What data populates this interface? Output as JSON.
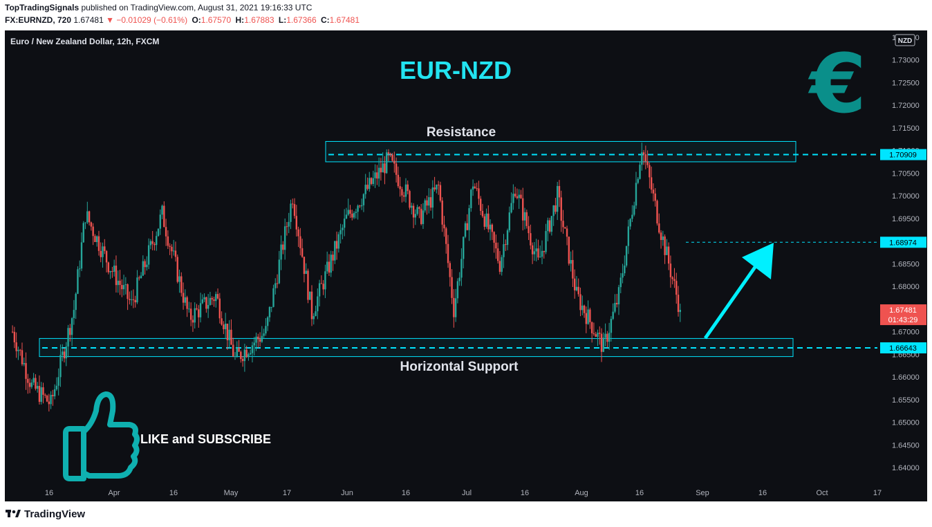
{
  "header": {
    "author": "TopTradingSignals",
    "published": "published on TradingView.com, August 31, 2021 19:16:33 UTC",
    "symbol": "FX:EURNZD, 720",
    "last": "1.67481",
    "change_arrow": "▼",
    "change": "−0.01029 (−0.61%)",
    "o_label": "O:",
    "o": "1.67570",
    "h_label": "H:",
    "h": "1.67883",
    "l_label": "L:",
    "l": "1.67366",
    "c_label": "C:",
    "c": "1.67481"
  },
  "chart": {
    "instrument": "Euro / New Zealand Dollar, 12h, FXCM",
    "headline": "EUR-NZD",
    "currency_badge": "NZD",
    "euro_symbol": "€",
    "resistance_label": "Resistance",
    "support_label": "Horizontal Support",
    "like_label": "LIKE and SUBSCRIBE",
    "price_badges": {
      "resistance": "1.70909",
      "target": "1.68974",
      "last_price": "1.67481",
      "countdown": "01:43:29",
      "support": "1.66643"
    },
    "colors": {
      "up": "#26a69a",
      "down": "#ef5350",
      "accent": "#00e5ff",
      "background": "#0d0f14",
      "axis_text": "#b2b5be"
    }
  },
  "chart_data": {
    "type": "candlestick",
    "ylim": [
      1.6365,
      1.7365
    ],
    "y_ticks": [
      "1.73500",
      "1.73000",
      "1.72500",
      "1.72000",
      "1.71500",
      "1.71000",
      "1.70500",
      "1.70000",
      "1.69500",
      "1.69000",
      "1.68500",
      "1.68000",
      "1.67500",
      "1.67000",
      "1.66500",
      "1.66000",
      "1.65500",
      "1.65000",
      "1.64500",
      "1.64000"
    ],
    "x_ticks": [
      "16",
      "Apr",
      "16",
      "May",
      "17",
      "Jun",
      "16",
      "Jul",
      "16",
      "Aug",
      "16",
      "Sep",
      "16",
      "Oct",
      "17"
    ],
    "resistance_zone": [
      1.7075,
      1.712
    ],
    "resistance_level": 1.70909,
    "support_zone": [
      1.6645,
      1.6685
    ],
    "support_level": 1.66643,
    "target_level": 1.68974,
    "last_price": 1.67481,
    "anchors": [
      {
        "date": "2021-03-10",
        "price": 1.67
      },
      {
        "date": "2021-03-15",
        "price": 1.658
      },
      {
        "date": "2021-03-20",
        "price": 1.654
      },
      {
        "date": "2021-03-26",
        "price": 1.675
      },
      {
        "date": "2021-03-29",
        "price": 1.696
      },
      {
        "date": "2021-04-04",
        "price": 1.685
      },
      {
        "date": "2021-04-10",
        "price": 1.676
      },
      {
        "date": "2021-04-18",
        "price": 1.696
      },
      {
        "date": "2021-04-25",
        "price": 1.673
      },
      {
        "date": "2021-05-02",
        "price": 1.678
      },
      {
        "date": "2021-05-07",
        "price": 1.664
      },
      {
        "date": "2021-05-15",
        "price": 1.67
      },
      {
        "date": "2021-05-22",
        "price": 1.7
      },
      {
        "date": "2021-05-27",
        "price": 1.674
      },
      {
        "date": "2021-06-05",
        "price": 1.695
      },
      {
        "date": "2021-06-16",
        "price": 1.708
      },
      {
        "date": "2021-06-24",
        "price": 1.695
      },
      {
        "date": "2021-06-29",
        "price": 1.702
      },
      {
        "date": "2021-07-03",
        "price": 1.675
      },
      {
        "date": "2021-07-08",
        "price": 1.703
      },
      {
        "date": "2021-07-15",
        "price": 1.685
      },
      {
        "date": "2021-07-19",
        "price": 1.702
      },
      {
        "date": "2021-07-25",
        "price": 1.685
      },
      {
        "date": "2021-07-30",
        "price": 1.7
      },
      {
        "date": "2021-08-04",
        "price": 1.678
      },
      {
        "date": "2021-08-11",
        "price": 1.6665
      },
      {
        "date": "2021-08-15",
        "price": 1.678
      },
      {
        "date": "2021-08-21",
        "price": 1.711
      },
      {
        "date": "2021-08-26",
        "price": 1.692
      },
      {
        "date": "2021-08-31",
        "price": 1.67481
      }
    ]
  }
}
